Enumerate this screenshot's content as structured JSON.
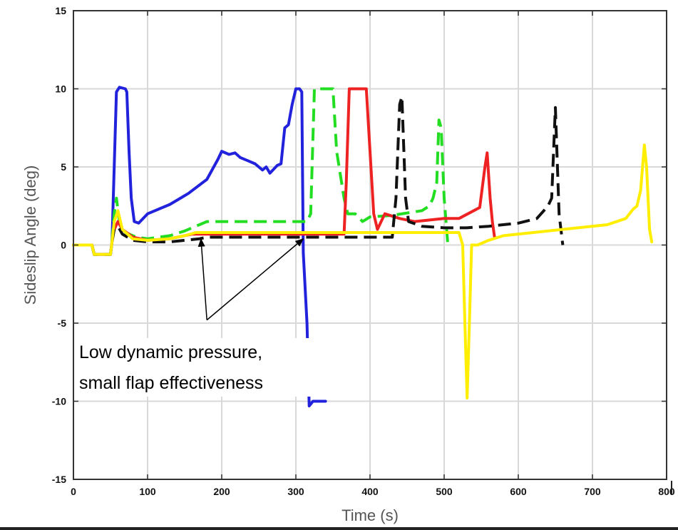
{
  "chart_data": {
    "type": "line",
    "title": "",
    "xlabel": "Time (s)",
    "ylabel": "Sideslip Angle (deg)",
    "xlim": [
      0,
      800
    ],
    "ylim": [
      -15,
      15
    ],
    "xticks": [
      0,
      100,
      200,
      300,
      400,
      500,
      600,
      700,
      800
    ],
    "yticks": [
      -15,
      -10,
      -5,
      0,
      5,
      10,
      15
    ],
    "grid": true,
    "series": [
      {
        "color": "#2222dd",
        "style": "solid",
        "points": [
          [
            0,
            0
          ],
          [
            25,
            0
          ],
          [
            28,
            -0.6
          ],
          [
            50,
            -0.6
          ],
          [
            52,
            0.2
          ],
          [
            55,
            5
          ],
          [
            58,
            9.8
          ],
          [
            62,
            10.1
          ],
          [
            70,
            10
          ],
          [
            72,
            9.8
          ],
          [
            75,
            6
          ],
          [
            78,
            3
          ],
          [
            82,
            1.5
          ],
          [
            88,
            1.4
          ],
          [
            100,
            2
          ],
          [
            130,
            2.6
          ],
          [
            155,
            3.3
          ],
          [
            180,
            4.2
          ],
          [
            195,
            5.5
          ],
          [
            200,
            6
          ],
          [
            210,
            5.8
          ],
          [
            218,
            5.9
          ],
          [
            225,
            5.6
          ],
          [
            235,
            5.4
          ],
          [
            245,
            5.2
          ],
          [
            255,
            4.8
          ],
          [
            260,
            5
          ],
          [
            265,
            4.6
          ],
          [
            275,
            5.1
          ],
          [
            280,
            5.2
          ],
          [
            285,
            7.5
          ],
          [
            290,
            7.7
          ],
          [
            295,
            9
          ],
          [
            300,
            10
          ],
          [
            305,
            10
          ],
          [
            308,
            9.8
          ],
          [
            310,
            -0.5
          ],
          [
            315,
            -5
          ],
          [
            318,
            -10.3
          ],
          [
            323,
            -10
          ],
          [
            340,
            -10
          ]
        ]
      },
      {
        "color": "#22dd22",
        "style": "dashed",
        "points": [
          [
            0,
            0
          ],
          [
            25,
            0
          ],
          [
            28,
            -0.6
          ],
          [
            50,
            -0.6
          ],
          [
            52,
            0.2
          ],
          [
            55,
            2
          ],
          [
            58,
            3
          ],
          [
            62,
            1.5
          ],
          [
            70,
            0.8
          ],
          [
            85,
            0.5
          ],
          [
            100,
            0.4
          ],
          [
            130,
            0.6
          ],
          [
            150,
            0.9
          ],
          [
            170,
            1.3
          ],
          [
            180,
            1.5
          ],
          [
            200,
            1.5
          ],
          [
            310,
            1.5
          ],
          [
            315,
            1.5
          ],
          [
            320,
            2
          ],
          [
            325,
            10
          ],
          [
            350,
            10
          ],
          [
            355,
            6
          ],
          [
            365,
            3
          ],
          [
            370,
            2
          ],
          [
            380,
            2
          ],
          [
            390,
            1.5
          ],
          [
            400,
            1.8
          ],
          [
            430,
            1.9
          ],
          [
            470,
            2.2
          ],
          [
            480,
            2.5
          ],
          [
            485,
            3
          ],
          [
            490,
            4
          ],
          [
            493,
            8
          ],
          [
            496,
            7.5
          ],
          [
            500,
            3
          ],
          [
            505,
            0
          ]
        ]
      },
      {
        "color": "#ee2222",
        "style": "solid",
        "points": [
          [
            0,
            0
          ],
          [
            25,
            0
          ],
          [
            28,
            -0.6
          ],
          [
            50,
            -0.6
          ],
          [
            52,
            0.2
          ],
          [
            55,
            1
          ],
          [
            60,
            1.5
          ],
          [
            66,
            1
          ],
          [
            80,
            0.5
          ],
          [
            100,
            0.3
          ],
          [
            130,
            0.4
          ],
          [
            150,
            0.6
          ],
          [
            160,
            0.7
          ],
          [
            180,
            0.7
          ],
          [
            365,
            0.7
          ],
          [
            368,
            4
          ],
          [
            372,
            10
          ],
          [
            395,
            10
          ],
          [
            400,
            6
          ],
          [
            405,
            2
          ],
          [
            410,
            1
          ],
          [
            420,
            2
          ],
          [
            440,
            1.7
          ],
          [
            460,
            1.5
          ],
          [
            500,
            1.7
          ],
          [
            520,
            1.7
          ],
          [
            540,
            2.2
          ],
          [
            548,
            2.4
          ],
          [
            555,
            5
          ],
          [
            558,
            5.9
          ],
          [
            562,
            3
          ],
          [
            565,
            1.5
          ],
          [
            568,
            0.5
          ]
        ]
      },
      {
        "color": "#111111",
        "style": "dashed",
        "points": [
          [
            0,
            0
          ],
          [
            25,
            0
          ],
          [
            28,
            -0.6
          ],
          [
            50,
            -0.6
          ],
          [
            52,
            0.2
          ],
          [
            55,
            1
          ],
          [
            60,
            1.2
          ],
          [
            66,
            0.7
          ],
          [
            80,
            0.3
          ],
          [
            100,
            0.2
          ],
          [
            130,
            0.2
          ],
          [
            150,
            0.3
          ],
          [
            170,
            0.4
          ],
          [
            180,
            0.5
          ],
          [
            430,
            0.5
          ],
          [
            435,
            3
          ],
          [
            440,
            9
          ],
          [
            443,
            9.5
          ],
          [
            448,
            3
          ],
          [
            452,
            1.5
          ],
          [
            470,
            1.2
          ],
          [
            500,
            1.1
          ],
          [
            530,
            1.1
          ],
          [
            560,
            1.2
          ],
          [
            600,
            1.4
          ],
          [
            625,
            1.7
          ],
          [
            640,
            2.5
          ],
          [
            645,
            3
          ],
          [
            650,
            8.8
          ],
          [
            655,
            2
          ],
          [
            660,
            0
          ]
        ]
      },
      {
        "color": "#ffee00",
        "style": "solid",
        "points": [
          [
            0,
            0
          ],
          [
            25,
            0
          ],
          [
            28,
            -0.6
          ],
          [
            50,
            -0.6
          ],
          [
            52,
            0.2
          ],
          [
            55,
            1.5
          ],
          [
            60,
            2.2
          ],
          [
            66,
            1
          ],
          [
            80,
            0.4
          ],
          [
            100,
            0.3
          ],
          [
            130,
            0.4
          ],
          [
            150,
            0.6
          ],
          [
            165,
            0.8
          ],
          [
            180,
            0.8
          ],
          [
            520,
            0.8
          ],
          [
            525,
            0
          ],
          [
            528,
            -5
          ],
          [
            531,
            -9.8
          ],
          [
            534,
            -5
          ],
          [
            537,
            0
          ],
          [
            545,
            0
          ],
          [
            560,
            0.3
          ],
          [
            580,
            0.6
          ],
          [
            620,
            0.8
          ],
          [
            680,
            1.1
          ],
          [
            720,
            1.3
          ],
          [
            745,
            1.7
          ],
          [
            755,
            2.3
          ],
          [
            760,
            2.5
          ],
          [
            765,
            3.5
          ],
          [
            770,
            6.4
          ],
          [
            773,
            5
          ],
          [
            777,
            1
          ],
          [
            780,
            0.2
          ]
        ]
      }
    ],
    "annotation": {
      "lines": [
        "Low dynamic pressure,",
        "small flap effectiveness"
      ],
      "arrow_targets": [
        [
          172,
          0.4
        ],
        [
          310,
          0.4
        ]
      ],
      "arrow_origin": [
        180,
        -4.8
      ]
    }
  }
}
